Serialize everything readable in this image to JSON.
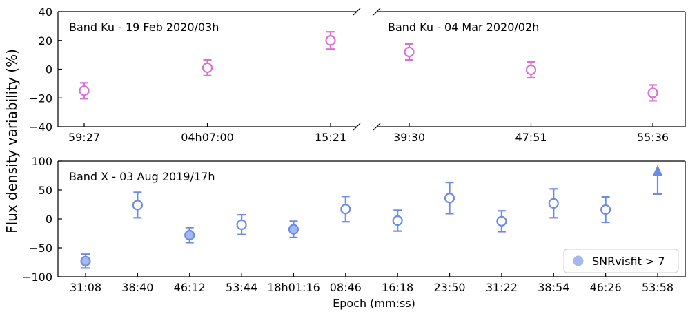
{
  "y_axis_label": "Flux density variability (%)",
  "x_axis_label": "Epoch (mm:ss)",
  "colors": {
    "ku": "#da70d6",
    "x": "#6a8be8",
    "x_fill": "#a5b8f0",
    "axis": "#000000"
  },
  "legend": {
    "label": "SNRvisfit > 7",
    "position": "lower-right"
  },
  "chart_data": [
    {
      "type": "scatter",
      "panel": "ku-left",
      "title": "Band Ku - 19 Feb 2020/03h",
      "ylim": [
        -40,
        40
      ],
      "yticks": [
        -40,
        -20,
        0,
        20,
        40
      ],
      "yticks_shown": true,
      "categories": [
        "59:27",
        "04h07:00",
        "15:21"
      ],
      "series": [
        {
          "values": [
            -15,
            1,
            20
          ],
          "errors": [
            5.5,
            5.5,
            6
          ],
          "filled": [
            false,
            false,
            false
          ],
          "upper_limit": [
            false,
            false,
            false
          ]
        }
      ],
      "break_right": true
    },
    {
      "type": "scatter",
      "panel": "ku-right",
      "title": "Band Ku - 04 Mar 2020/02h",
      "ylim": [
        -40,
        40
      ],
      "yticks": [
        -40,
        -20,
        0,
        20,
        40
      ],
      "yticks_shown": false,
      "categories": [
        "39:30",
        "47:51",
        "55:36"
      ],
      "series": [
        {
          "values": [
            12,
            -0.5,
            -16.5
          ],
          "errors": [
            5.5,
            5.5,
            5.5
          ],
          "filled": [
            false,
            false,
            false
          ],
          "upper_limit": [
            false,
            false,
            false
          ]
        }
      ],
      "break_left": true
    },
    {
      "type": "scatter",
      "panel": "x-bottom",
      "title": "Band X - 03 Aug 2019/17h",
      "ylim": [
        -100,
        100
      ],
      "yticks": [
        -100,
        -50,
        0,
        50,
        100
      ],
      "yticks_shown": true,
      "categories": [
        "31:08",
        "38:40",
        "46:12",
        "53:44",
        "18h01:16",
        "08:46",
        "16:18",
        "23:50",
        "31:22",
        "38:54",
        "46:26",
        "53:58"
      ],
      "series": [
        {
          "values": [
            -73,
            24,
            -28,
            -10,
            -18,
            17,
            -3,
            36,
            -4,
            27,
            16,
            43
          ],
          "errors": [
            12,
            22,
            13,
            17,
            14,
            22,
            18,
            27,
            18,
            25,
            22,
            0
          ],
          "filled": [
            true,
            false,
            true,
            false,
            true,
            false,
            false,
            false,
            false,
            false,
            false,
            false
          ],
          "upper_limit": [
            false,
            false,
            false,
            false,
            false,
            false,
            false,
            false,
            false,
            false,
            false,
            true
          ],
          "arrow_to": [
            null,
            null,
            null,
            null,
            null,
            null,
            null,
            null,
            null,
            null,
            null,
            84
          ]
        }
      ]
    }
  ]
}
